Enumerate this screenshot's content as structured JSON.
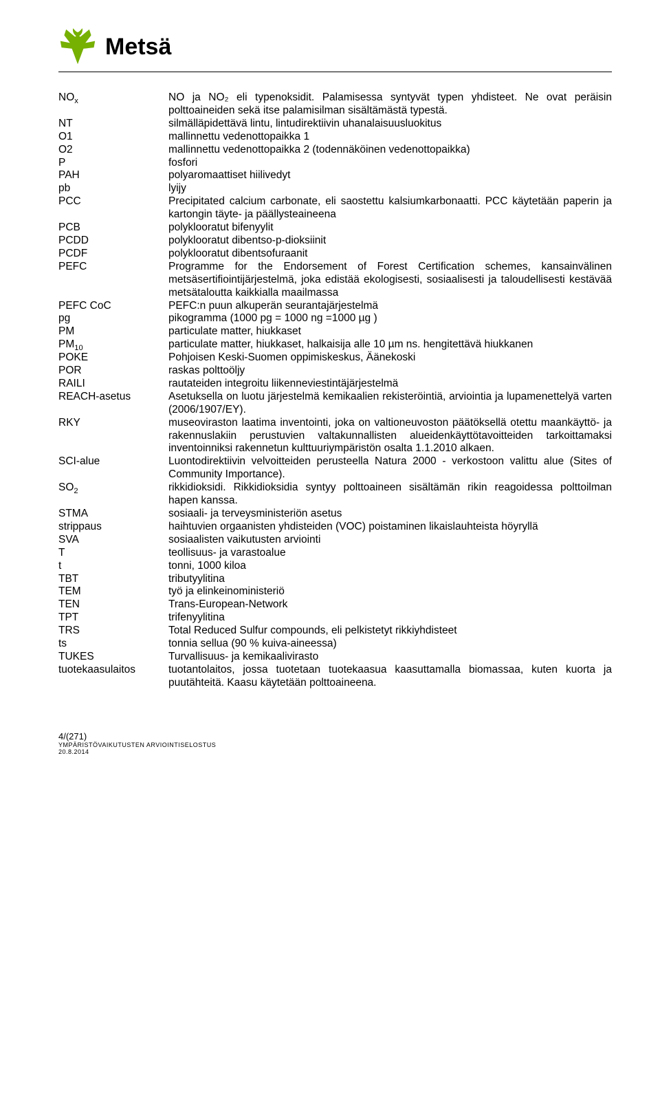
{
  "brand": "Metsä",
  "logo_color": "#76b000",
  "entries": [
    {
      "term_html": "NO<span class='sub'>x</span>",
      "desc": "NO ja NO₂ eli typenoksidit. Palamisessa syntyvät typen yhdisteet. Ne ovat peräisin polttoaineiden sekä itse palamisilman sisältämästä typestä."
    },
    {
      "term_html": "NT",
      "desc": "silmälläpidettävä lintu, lintudirektiivin uhanalaisuusluokitus"
    },
    {
      "term_html": "O1",
      "desc": "mallinnettu vedenottopaikka 1"
    },
    {
      "term_html": "O2",
      "desc": "mallinnettu vedenottopaikka 2 (todennäköinen vedenottopaikka)"
    },
    {
      "term_html": "P",
      "desc": "fosfori"
    },
    {
      "term_html": "PAH",
      "desc": "polyaromaattiset hiilivedyt"
    },
    {
      "term_html": "pb",
      "desc": "lyijy"
    },
    {
      "term_html": "PCC",
      "desc": "Precipitated calcium carbonate, eli saostettu kalsiumkarbonaatti. PCC käytetään paperin ja kartongin täyte- ja päällysteaineena"
    },
    {
      "term_html": "PCB",
      "desc": "polyklooratut bifenyylit"
    },
    {
      "term_html": "PCDD",
      "desc": "polyklooratut dibentso-p-dioksiinit"
    },
    {
      "term_html": "PCDF",
      "desc": "polyklooratut dibentsofuraanit"
    },
    {
      "term_html": "PEFC",
      "desc": "Programme for the Endorsement of Forest Certification schemes, kansainvälinen metsäsertifiointijärjestelmä, joka edistää ekologisesti, sosiaalisesti ja taloudellisesti kestävää metsätaloutta kaikkialla maailmassa"
    },
    {
      "term_html": "PEFC CoC",
      "desc": "PEFC:n puun alkuperän seurantajärjestelmä"
    },
    {
      "term_html": "pg",
      "desc": "pikogramma (1000 pg = 1000 ng =1000 µg )"
    },
    {
      "term_html": "PM",
      "desc": "particulate matter, hiukkaset"
    },
    {
      "term_html": "PM<span class='sub'>10</span>",
      "desc": "particulate matter, hiukkaset, halkaisija alle 10 µm ns. hengitettävä hiukkanen"
    },
    {
      "term_html": "POKE",
      "desc": "Pohjoisen Keski-Suomen oppimiskeskus, Äänekoski"
    },
    {
      "term_html": "POR",
      "desc": "raskas polttoöljy"
    },
    {
      "term_html": "RAILI",
      "desc": "rautateiden integroitu liikenneviestintäjärjestelmä"
    },
    {
      "term_html": "REACH-asetus",
      "desc": "Asetuksella on luotu järjestelmä kemikaalien rekisteröintiä, arviointia ja lupamenettelyä varten (2006/1907/EY)."
    },
    {
      "term_html": "RKY",
      "desc": "museoviraston laatima inventointi, joka on valtioneuvoston päätöksellä otettu maankäyttö- ja rakennuslakiin perustuvien valtakunnallisten alueidenkäyttötavoitteiden tarkoittamaksi inventoinniksi rakennetun kulttuuriympäristön osalta 1.1.2010 alkaen."
    },
    {
      "term_html": "SCI-alue",
      "desc": "Luontodirektiivin velvoitteiden perusteella Natura 2000 - verkostoon valittu alue (Sites of Community Importance)."
    },
    {
      "term_html": "SO<span class='sub'>2</span>",
      "desc": "rikkidioksidi. Rikkidioksidia syntyy polttoaineen sisältämän rikin reagoidessa polttoilman hapen kanssa."
    },
    {
      "term_html": "STMA",
      "desc": "sosiaali- ja terveysministeriön asetus"
    },
    {
      "term_html": "strippaus",
      "desc": "haihtuvien orgaanisten yhdisteiden (VOC) poistaminen likaislauhteista höyryllä"
    },
    {
      "term_html": "SVA",
      "desc": "sosiaalisten vaikutusten arviointi"
    },
    {
      "term_html": "T",
      "desc": "teollisuus- ja varastoalue"
    },
    {
      "term_html": "t",
      "desc": "tonni, 1000 kiloa"
    },
    {
      "term_html": "TBT",
      "desc": "tributyylitina"
    },
    {
      "term_html": "TEM",
      "desc": "työ ja elinkeinoministeriö"
    },
    {
      "term_html": "TEN",
      "desc": "Trans-European-Network"
    },
    {
      "term_html": "TPT",
      "desc": "trifenyylitina"
    },
    {
      "term_html": "TRS",
      "desc": "Total Reduced Sulfur compounds, eli pelkistetyt rikkiyhdisteet"
    },
    {
      "term_html": "ts",
      "desc": "tonnia sellua (90 % kuiva-aineessa)"
    },
    {
      "term_html": "TUKES",
      "desc": "Turvallisuus- ja kemikaalivirasto"
    },
    {
      "term_html": "tuotekaasulaitos",
      "desc": "tuotantolaitos, jossa tuotetaan tuotekaasua kaasuttamalla biomassaa, kuten kuorta ja puutähteitä. Kaasu käytetään polttoaineena."
    }
  ],
  "footer": {
    "page": "4/(271)",
    "title": "YMPÄRISTÖVAIKUTUSTEN ARVIOINTISELOSTUS",
    "date": "20.8.2014"
  }
}
